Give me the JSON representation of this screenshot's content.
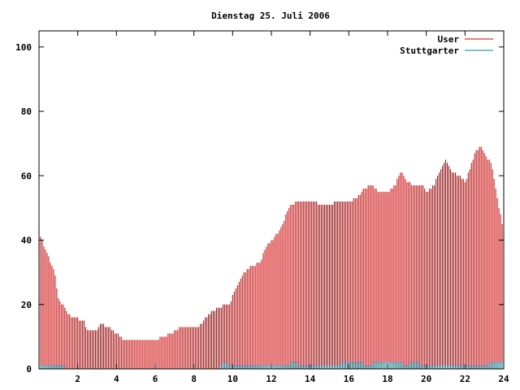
{
  "chart_data": {
    "type": "bar",
    "title": "Dienstag 25. Juli 2006",
    "xlabel": "",
    "ylabel": "",
    "xlim": [
      0,
      24
    ],
    "ylim": [
      0,
      105
    ],
    "x_ticks": [
      2,
      4,
      6,
      8,
      10,
      12,
      14,
      16,
      18,
      20,
      22,
      24
    ],
    "y_ticks": [
      0,
      20,
      40,
      60,
      80,
      100
    ],
    "legend_position": "top-right",
    "grid": false,
    "colors": {
      "User": "#cc0000",
      "Stuttgarter": "#008b8b",
      "Stuttgarter_marker": "#3333cc"
    },
    "anchors": {
      "User": [
        [
          0,
          42
        ],
        [
          0.2,
          39
        ],
        [
          0.4,
          36
        ],
        [
          0.6,
          33
        ],
        [
          0.8,
          30
        ],
        [
          1.0,
          22
        ],
        [
          1.2,
          20
        ],
        [
          1.5,
          17
        ],
        [
          1.8,
          16
        ],
        [
          2.3,
          15
        ],
        [
          2.5,
          12
        ],
        [
          3.0,
          12
        ],
        [
          3.2,
          14
        ],
        [
          3.6,
          13
        ],
        [
          4.0,
          11
        ],
        [
          4.4,
          9
        ],
        [
          5.0,
          9
        ],
        [
          6.0,
          9
        ],
        [
          6.4,
          10
        ],
        [
          6.8,
          11
        ],
        [
          7.4,
          13
        ],
        [
          8.2,
          13
        ],
        [
          8.5,
          15
        ],
        [
          8.8,
          17
        ],
        [
          9.2,
          19
        ],
        [
          9.8,
          20
        ],
        [
          10.2,
          25
        ],
        [
          10.6,
          30
        ],
        [
          11.0,
          32
        ],
        [
          11.4,
          33
        ],
        [
          11.8,
          39
        ],
        [
          12.1,
          40
        ],
        [
          12.5,
          44
        ],
        [
          12.9,
          50
        ],
        [
          13.3,
          52
        ],
        [
          13.7,
          52
        ],
        [
          14.2,
          52
        ],
        [
          14.6,
          51
        ],
        [
          15.0,
          51
        ],
        [
          15.5,
          52
        ],
        [
          16.0,
          52
        ],
        [
          16.4,
          53
        ],
        [
          16.8,
          56
        ],
        [
          17.2,
          57
        ],
        [
          17.5,
          55
        ],
        [
          18.0,
          55
        ],
        [
          18.4,
          57
        ],
        [
          18.7,
          62
        ],
        [
          19.0,
          58
        ],
        [
          19.4,
          57
        ],
        [
          19.8,
          57
        ],
        [
          20.0,
          55
        ],
        [
          20.4,
          57
        ],
        [
          20.8,
          63
        ],
        [
          21.0,
          65
        ],
        [
          21.3,
          61
        ],
        [
          21.7,
          60
        ],
        [
          22.0,
          58
        ],
        [
          22.4,
          65
        ],
        [
          22.6,
          68
        ],
        [
          22.8,
          69
        ],
        [
          23.1,
          66
        ],
        [
          23.4,
          63
        ],
        [
          23.7,
          52
        ],
        [
          24.0,
          42
        ]
      ],
      "Stuttgarter": [
        [
          0,
          1
        ],
        [
          1.3,
          1
        ],
        [
          1.4,
          0
        ],
        [
          9.2,
          0
        ],
        [
          9.4,
          1
        ],
        [
          9.6,
          2
        ],
        [
          9.8,
          1
        ],
        [
          10.2,
          1
        ],
        [
          11.6,
          1
        ],
        [
          12.2,
          1
        ],
        [
          12.8,
          1
        ],
        [
          13.2,
          2
        ],
        [
          13.6,
          1
        ],
        [
          14.6,
          1
        ],
        [
          15.0,
          1
        ],
        [
          15.4,
          1
        ],
        [
          15.8,
          2
        ],
        [
          16.6,
          2
        ],
        [
          17.0,
          1
        ],
        [
          17.4,
          2
        ],
        [
          18.6,
          2
        ],
        [
          18.9,
          1
        ],
        [
          19.4,
          2
        ],
        [
          19.8,
          1
        ],
        [
          20.6,
          1
        ],
        [
          21.6,
          1
        ],
        [
          22.4,
          1
        ],
        [
          22.8,
          1
        ],
        [
          23.0,
          1
        ],
        [
          23.4,
          2
        ],
        [
          24.0,
          2
        ]
      ]
    },
    "series": [
      {
        "name": "User",
        "style": "impulses"
      },
      {
        "name": "Stuttgarter",
        "style": "impulses"
      }
    ]
  }
}
